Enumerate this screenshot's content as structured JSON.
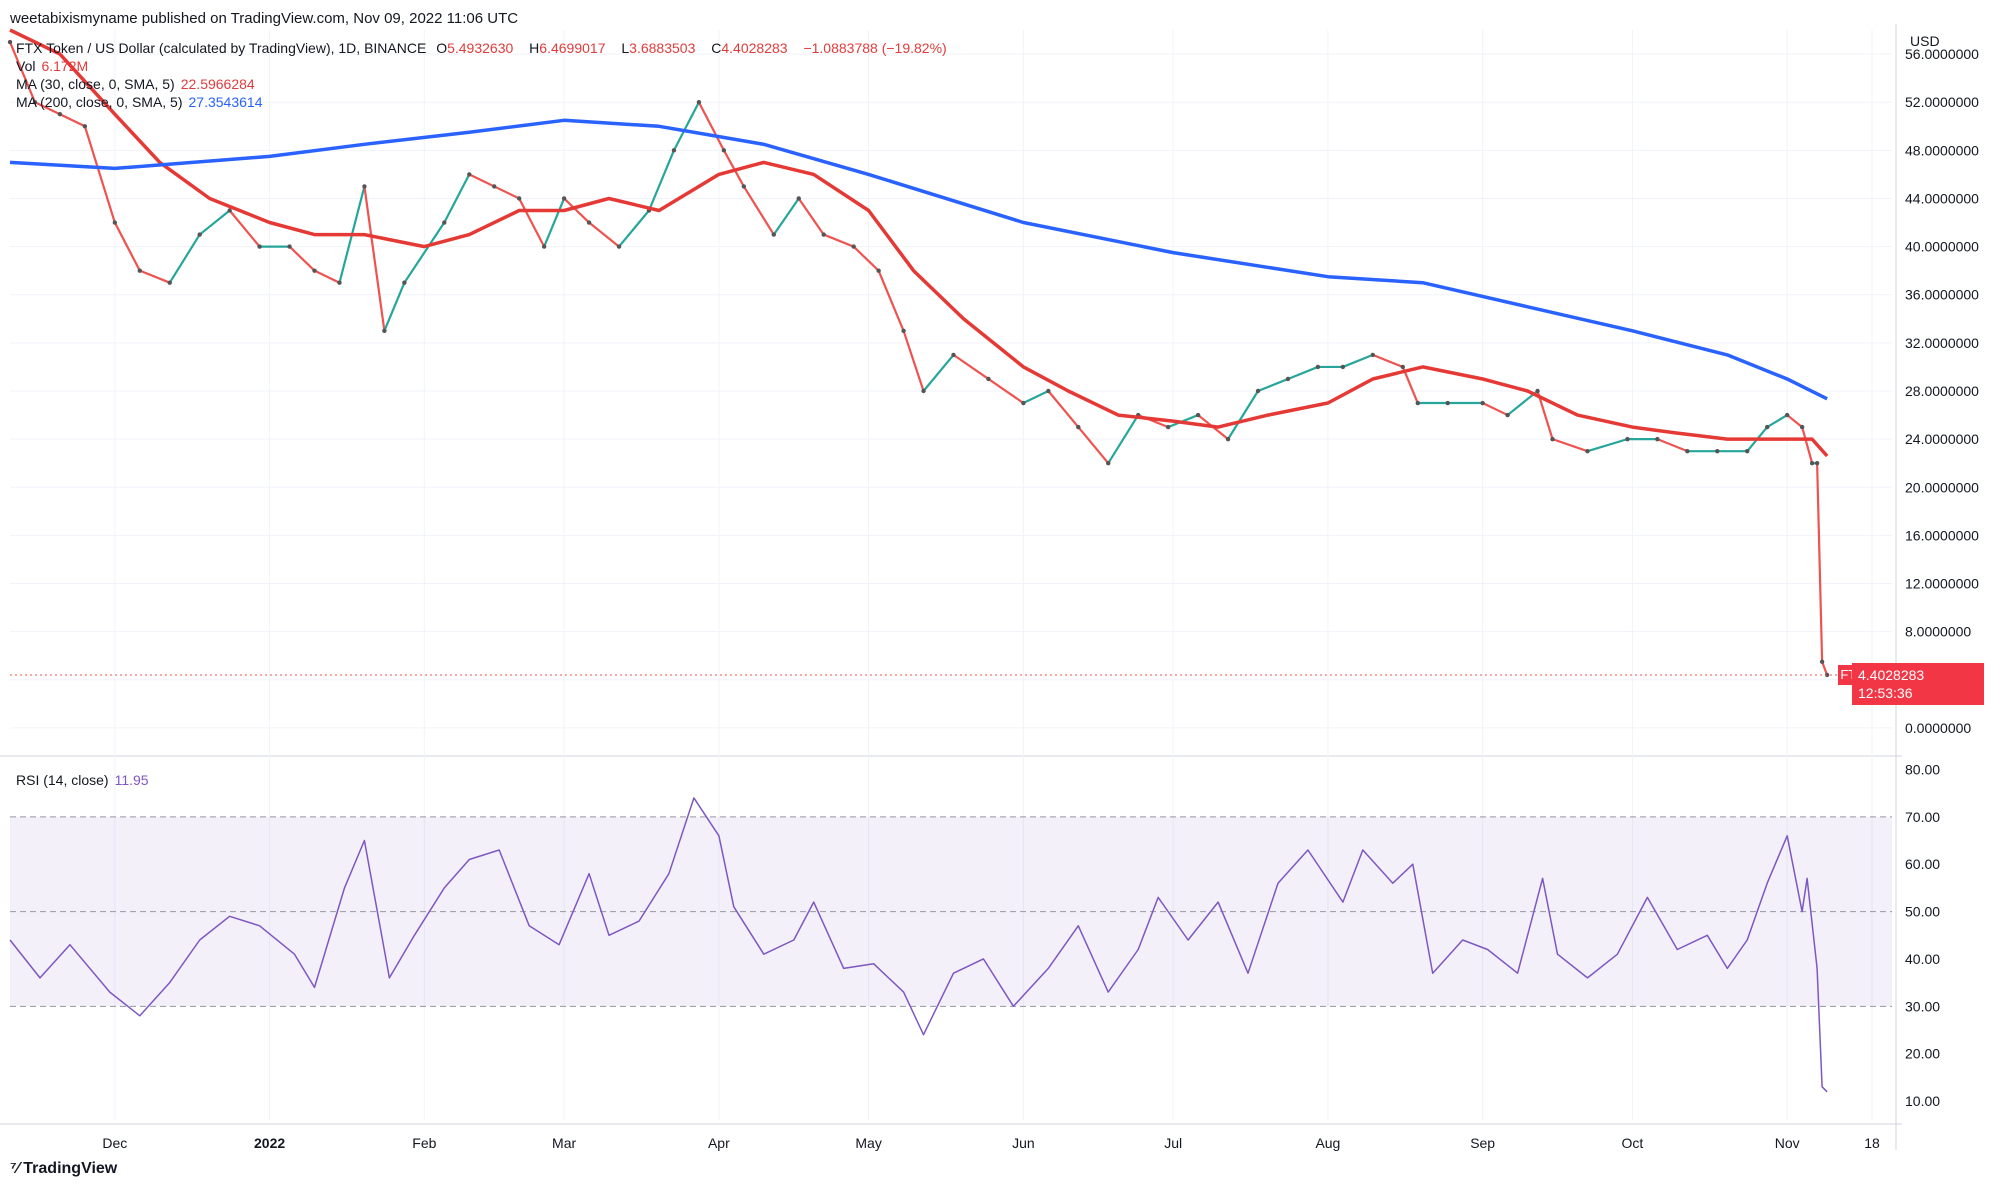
{
  "publisher": "weetabixismyname published on TradingView.com, Nov 09, 2022 11:06 UTC",
  "legend": {
    "title": "FTX Token / US Dollar (calculated by TradingView), 1D, BINANCE",
    "o_label": "O",
    "o": "5.4932630",
    "h_label": "H",
    "h": "6.4699017",
    "l_label": "L",
    "l": "3.6883503",
    "c_label": "C",
    "c": "4.4028283",
    "chg": "−1.0883788 (−19.82%)",
    "vol_label": "Vol",
    "vol_value": "6.172M",
    "ma30_label": "MA (30, close, 0, SMA, 5)",
    "ma30_value": "22.5966284",
    "ma200_label": "MA (200, close, 0, SMA, 5)",
    "ma200_value": "27.3543614",
    "rsi_label": "RSI (14, close)",
    "rsi_value": "11.95"
  },
  "price_tag": {
    "symbol": "FTTUSD",
    "price": "4.4028283",
    "countdown": "12:53:36"
  },
  "branding": "TradingView",
  "colors": {
    "up": "#26a69a",
    "down": "#ef5350",
    "ma30": "#e53935",
    "ma200": "#2962ff",
    "rsi": "#7e57c2",
    "grid": "#f0f3fa"
  },
  "chart_data": {
    "type": "line",
    "title": "FTX Token / US Dollar (calculated by TradingView), 1D, BINANCE",
    "price_axis": {
      "unit": "USD",
      "ylim": [
        -2,
        58
      ],
      "ticks": [
        0,
        4,
        8,
        12,
        16,
        20,
        24,
        28,
        32,
        36,
        40,
        44,
        48,
        52,
        56
      ],
      "tick_labels": [
        "0.0000000",
        "4.0000000",
        "8.0000000",
        "12.0000000",
        "16.0000000",
        "20.0000000",
        "24.0000000",
        "28.0000000",
        "32.0000000",
        "36.0000000",
        "40.0000000",
        "44.0000000",
        "48.0000000",
        "52.0000000",
        "56.0000000"
      ]
    },
    "rsi_axis": {
      "ylim": [
        6,
        82
      ],
      "ticks": [
        10,
        20,
        30,
        40,
        50,
        60,
        70,
        80
      ],
      "tick_labels": [
        "10.00",
        "20.00",
        "30.00",
        "40.00",
        "50.00",
        "60.00",
        "70.00",
        "80.00"
      ],
      "bands": [
        30,
        50,
        70
      ]
    },
    "x_axis": {
      "range": [
        "2021-11-10",
        "2022-11-22"
      ],
      "ticks": [
        {
          "date": "2021-12-01",
          "label": "Dec"
        },
        {
          "date": "2022-01-01",
          "label": "2022"
        },
        {
          "date": "2022-02-01",
          "label": "Feb"
        },
        {
          "date": "2022-03-01",
          "label": "Mar"
        },
        {
          "date": "2022-04-01",
          "label": "Apr"
        },
        {
          "date": "2022-05-01",
          "label": "May"
        },
        {
          "date": "2022-06-01",
          "label": "Jun"
        },
        {
          "date": "2022-07-01",
          "label": "Jul"
        },
        {
          "date": "2022-08-01",
          "label": "Aug"
        },
        {
          "date": "2022-09-01",
          "label": "Sep"
        },
        {
          "date": "2022-10-01",
          "label": "Oct"
        },
        {
          "date": "2022-11-01",
          "label": "Nov"
        },
        {
          "date": "2022-11-18",
          "label": "18"
        }
      ]
    },
    "price_series": [
      {
        "date": "2021-11-10",
        "value": 57
      },
      {
        "date": "2021-11-15",
        "value": 52
      },
      {
        "date": "2021-11-20",
        "value": 51
      },
      {
        "date": "2021-11-25",
        "value": 50
      },
      {
        "date": "2021-12-01",
        "value": 42
      },
      {
        "date": "2021-12-06",
        "value": 38
      },
      {
        "date": "2021-12-12",
        "value": 37
      },
      {
        "date": "2021-12-18",
        "value": 41
      },
      {
        "date": "2021-12-24",
        "value": 43
      },
      {
        "date": "2021-12-30",
        "value": 40
      },
      {
        "date": "2022-01-05",
        "value": 40
      },
      {
        "date": "2022-01-10",
        "value": 38
      },
      {
        "date": "2022-01-15",
        "value": 37
      },
      {
        "date": "2022-01-20",
        "value": 45
      },
      {
        "date": "2022-01-24",
        "value": 33
      },
      {
        "date": "2022-01-28",
        "value": 37
      },
      {
        "date": "2022-02-05",
        "value": 42
      },
      {
        "date": "2022-02-10",
        "value": 46
      },
      {
        "date": "2022-02-15",
        "value": 45
      },
      {
        "date": "2022-02-20",
        "value": 44
      },
      {
        "date": "2022-02-25",
        "value": 40
      },
      {
        "date": "2022-03-01",
        "value": 44
      },
      {
        "date": "2022-03-06",
        "value": 42
      },
      {
        "date": "2022-03-12",
        "value": 40
      },
      {
        "date": "2022-03-18",
        "value": 43
      },
      {
        "date": "2022-03-23",
        "value": 48
      },
      {
        "date": "2022-03-28",
        "value": 52
      },
      {
        "date": "2022-04-02",
        "value": 48
      },
      {
        "date": "2022-04-06",
        "value": 45
      },
      {
        "date": "2022-04-12",
        "value": 41
      },
      {
        "date": "2022-04-17",
        "value": 44
      },
      {
        "date": "2022-04-22",
        "value": 41
      },
      {
        "date": "2022-04-28",
        "value": 40
      },
      {
        "date": "2022-05-03",
        "value": 38
      },
      {
        "date": "2022-05-08",
        "value": 33
      },
      {
        "date": "2022-05-12",
        "value": 28
      },
      {
        "date": "2022-05-18",
        "value": 31
      },
      {
        "date": "2022-05-25",
        "value": 29
      },
      {
        "date": "2022-06-01",
        "value": 27
      },
      {
        "date": "2022-06-06",
        "value": 28
      },
      {
        "date": "2022-06-12",
        "value": 25
      },
      {
        "date": "2022-06-18",
        "value": 22
      },
      {
        "date": "2022-06-24",
        "value": 26
      },
      {
        "date": "2022-06-30",
        "value": 25
      },
      {
        "date": "2022-07-06",
        "value": 26
      },
      {
        "date": "2022-07-12",
        "value": 24
      },
      {
        "date": "2022-07-18",
        "value": 28
      },
      {
        "date": "2022-07-24",
        "value": 29
      },
      {
        "date": "2022-07-30",
        "value": 30
      },
      {
        "date": "2022-08-04",
        "value": 30
      },
      {
        "date": "2022-08-10",
        "value": 31
      },
      {
        "date": "2022-08-16",
        "value": 30
      },
      {
        "date": "2022-08-19",
        "value": 27
      },
      {
        "date": "2022-08-25",
        "value": 27
      },
      {
        "date": "2022-09-01",
        "value": 27
      },
      {
        "date": "2022-09-06",
        "value": 26
      },
      {
        "date": "2022-09-12",
        "value": 28
      },
      {
        "date": "2022-09-15",
        "value": 24
      },
      {
        "date": "2022-09-22",
        "value": 23
      },
      {
        "date": "2022-09-30",
        "value": 24
      },
      {
        "date": "2022-10-06",
        "value": 24
      },
      {
        "date": "2022-10-12",
        "value": 23
      },
      {
        "date": "2022-10-18",
        "value": 23
      },
      {
        "date": "2022-10-24",
        "value": 23
      },
      {
        "date": "2022-10-28",
        "value": 25
      },
      {
        "date": "2022-11-01",
        "value": 26
      },
      {
        "date": "2022-11-04",
        "value": 25
      },
      {
        "date": "2022-11-06",
        "value": 22
      },
      {
        "date": "2022-11-07",
        "value": 22
      },
      {
        "date": "2022-11-08",
        "value": 5.5
      },
      {
        "date": "2022-11-09",
        "value": 4.4
      }
    ],
    "series": [
      {
        "name": "MA (30, close, 0, SMA, 5)",
        "points": [
          {
            "date": "2021-11-10",
            "value": 58
          },
          {
            "date": "2021-11-20",
            "value": 56
          },
          {
            "date": "2021-12-01",
            "value": 51
          },
          {
            "date": "2021-12-10",
            "value": 47
          },
          {
            "date": "2021-12-20",
            "value": 44
          },
          {
            "date": "2022-01-01",
            "value": 42
          },
          {
            "date": "2022-01-10",
            "value": 41
          },
          {
            "date": "2022-01-20",
            "value": 41
          },
          {
            "date": "2022-02-01",
            "value": 40
          },
          {
            "date": "2022-02-10",
            "value": 41
          },
          {
            "date": "2022-02-20",
            "value": 43
          },
          {
            "date": "2022-03-01",
            "value": 43
          },
          {
            "date": "2022-03-10",
            "value": 44
          },
          {
            "date": "2022-03-20",
            "value": 43
          },
          {
            "date": "2022-04-01",
            "value": 46
          },
          {
            "date": "2022-04-10",
            "value": 47
          },
          {
            "date": "2022-04-20",
            "value": 46
          },
          {
            "date": "2022-05-01",
            "value": 43
          },
          {
            "date": "2022-05-10",
            "value": 38
          },
          {
            "date": "2022-05-20",
            "value": 34
          },
          {
            "date": "2022-06-01",
            "value": 30
          },
          {
            "date": "2022-06-10",
            "value": 28
          },
          {
            "date": "2022-06-20",
            "value": 26
          },
          {
            "date": "2022-07-01",
            "value": 25.5
          },
          {
            "date": "2022-07-10",
            "value": 25
          },
          {
            "date": "2022-07-20",
            "value": 26
          },
          {
            "date": "2022-08-01",
            "value": 27
          },
          {
            "date": "2022-08-10",
            "value": 29
          },
          {
            "date": "2022-08-20",
            "value": 30
          },
          {
            "date": "2022-09-01",
            "value": 29
          },
          {
            "date": "2022-09-10",
            "value": 28
          },
          {
            "date": "2022-09-20",
            "value": 26
          },
          {
            "date": "2022-10-01",
            "value": 25
          },
          {
            "date": "2022-10-10",
            "value": 24.5
          },
          {
            "date": "2022-10-20",
            "value": 24
          },
          {
            "date": "2022-11-01",
            "value": 24
          },
          {
            "date": "2022-11-06",
            "value": 24
          },
          {
            "date": "2022-11-09",
            "value": 22.6
          }
        ]
      },
      {
        "name": "MA (200, close, 0, SMA, 5)",
        "points": [
          {
            "date": "2021-11-10",
            "value": 47
          },
          {
            "date": "2021-12-01",
            "value": 46.5
          },
          {
            "date": "2022-01-01",
            "value": 47.5
          },
          {
            "date": "2022-01-20",
            "value": 48.5
          },
          {
            "date": "2022-02-10",
            "value": 49.5
          },
          {
            "date": "2022-03-01",
            "value": 50.5
          },
          {
            "date": "2022-03-20",
            "value": 50
          },
          {
            "date": "2022-04-10",
            "value": 48.5
          },
          {
            "date": "2022-05-01",
            "value": 46
          },
          {
            "date": "2022-06-01",
            "value": 42
          },
          {
            "date": "2022-07-01",
            "value": 39.5
          },
          {
            "date": "2022-08-01",
            "value": 37.5
          },
          {
            "date": "2022-08-20",
            "value": 37
          },
          {
            "date": "2022-09-10",
            "value": 35
          },
          {
            "date": "2022-10-01",
            "value": 33
          },
          {
            "date": "2022-10-20",
            "value": 31
          },
          {
            "date": "2022-11-01",
            "value": 29
          },
          {
            "date": "2022-11-09",
            "value": 27.35
          }
        ]
      },
      {
        "name": "RSI (14, close)",
        "points": [
          {
            "date": "2021-11-10",
            "value": 44
          },
          {
            "date": "2021-11-16",
            "value": 36
          },
          {
            "date": "2021-11-22",
            "value": 43
          },
          {
            "date": "2021-11-30",
            "value": 33
          },
          {
            "date": "2021-12-06",
            "value": 28
          },
          {
            "date": "2021-12-12",
            "value": 35
          },
          {
            "date": "2021-12-18",
            "value": 44
          },
          {
            "date": "2021-12-24",
            "value": 49
          },
          {
            "date": "2021-12-30",
            "value": 47
          },
          {
            "date": "2022-01-06",
            "value": 41
          },
          {
            "date": "2022-01-10",
            "value": 34
          },
          {
            "date": "2022-01-16",
            "value": 55
          },
          {
            "date": "2022-01-20",
            "value": 65
          },
          {
            "date": "2022-01-25",
            "value": 36
          },
          {
            "date": "2022-01-30",
            "value": 45
          },
          {
            "date": "2022-02-05",
            "value": 55
          },
          {
            "date": "2022-02-10",
            "value": 61
          },
          {
            "date": "2022-02-16",
            "value": 63
          },
          {
            "date": "2022-02-22",
            "value": 47
          },
          {
            "date": "2022-02-28",
            "value": 43
          },
          {
            "date": "2022-03-06",
            "value": 58
          },
          {
            "date": "2022-03-10",
            "value": 45
          },
          {
            "date": "2022-03-16",
            "value": 48
          },
          {
            "date": "2022-03-22",
            "value": 58
          },
          {
            "date": "2022-03-27",
            "value": 74
          },
          {
            "date": "2022-04-01",
            "value": 66
          },
          {
            "date": "2022-04-04",
            "value": 51
          },
          {
            "date": "2022-04-10",
            "value": 41
          },
          {
            "date": "2022-04-16",
            "value": 44
          },
          {
            "date": "2022-04-20",
            "value": 52
          },
          {
            "date": "2022-04-26",
            "value": 38
          },
          {
            "date": "2022-05-02",
            "value": 39
          },
          {
            "date": "2022-05-08",
            "value": 33
          },
          {
            "date": "2022-05-12",
            "value": 24
          },
          {
            "date": "2022-05-18",
            "value": 37
          },
          {
            "date": "2022-05-24",
            "value": 40
          },
          {
            "date": "2022-05-30",
            "value": 30
          },
          {
            "date": "2022-06-06",
            "value": 38
          },
          {
            "date": "2022-06-12",
            "value": 47
          },
          {
            "date": "2022-06-18",
            "value": 33
          },
          {
            "date": "2022-06-24",
            "value": 42
          },
          {
            "date": "2022-06-28",
            "value": 53
          },
          {
            "date": "2022-07-04",
            "value": 44
          },
          {
            "date": "2022-07-10",
            "value": 52
          },
          {
            "date": "2022-07-16",
            "value": 37
          },
          {
            "date": "2022-07-22",
            "value": 56
          },
          {
            "date": "2022-07-28",
            "value": 63
          },
          {
            "date": "2022-08-04",
            "value": 52
          },
          {
            "date": "2022-08-08",
            "value": 63
          },
          {
            "date": "2022-08-14",
            "value": 56
          },
          {
            "date": "2022-08-18",
            "value": 60
          },
          {
            "date": "2022-08-22",
            "value": 37
          },
          {
            "date": "2022-08-28",
            "value": 44
          },
          {
            "date": "2022-09-02",
            "value": 42
          },
          {
            "date": "2022-09-08",
            "value": 37
          },
          {
            "date": "2022-09-13",
            "value": 57
          },
          {
            "date": "2022-09-16",
            "value": 41
          },
          {
            "date": "2022-09-22",
            "value": 36
          },
          {
            "date": "2022-09-28",
            "value": 41
          },
          {
            "date": "2022-10-04",
            "value": 53
          },
          {
            "date": "2022-10-10",
            "value": 42
          },
          {
            "date": "2022-10-16",
            "value": 45
          },
          {
            "date": "2022-10-20",
            "value": 38
          },
          {
            "date": "2022-10-24",
            "value": 44
          },
          {
            "date": "2022-10-28",
            "value": 56
          },
          {
            "date": "2022-11-01",
            "value": 66
          },
          {
            "date": "2022-11-04",
            "value": 50
          },
          {
            "date": "2022-11-05",
            "value": 57
          },
          {
            "date": "2022-11-07",
            "value": 38
          },
          {
            "date": "2022-11-08",
            "value": 13
          },
          {
            "date": "2022-11-09",
            "value": 11.95
          }
        ]
      }
    ],
    "volume_note_value": "6.172M"
  }
}
